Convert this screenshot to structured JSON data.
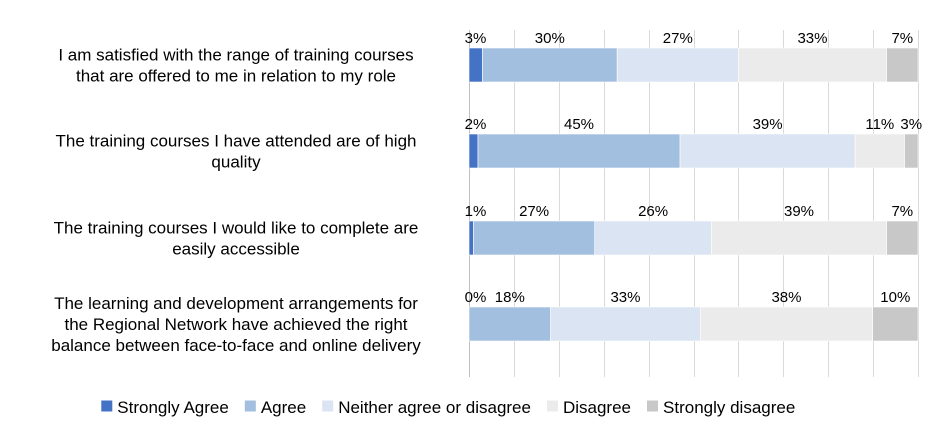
{
  "chart_data": {
    "type": "bar",
    "orientation": "horizontal",
    "stacked": "100%",
    "categories": [
      [
        "I am satisfied with the range of training courses",
        "that are offered to me in relation to my role"
      ],
      [
        "The training courses I have attended are of high",
        "quality"
      ],
      [
        "The training courses I would like to complete are",
        "easily accessible"
      ],
      [
        "The learning and development arrangements for",
        "the Regional Network have achieved the right",
        "balance between face-to-face and online delivery"
      ]
    ],
    "series": [
      {
        "name": "Strongly Agree",
        "color": "#4472C4",
        "values": [
          3,
          2,
          1,
          0
        ]
      },
      {
        "name": "Agree",
        "color": "#A3BFE0",
        "values": [
          30,
          45,
          27,
          18
        ]
      },
      {
        "name": "Neither agree or disagree",
        "color": "#DAE4F2",
        "values": [
          27,
          39,
          26,
          33
        ]
      },
      {
        "name": "Disagree",
        "color": "#EBEBEB",
        "values": [
          33,
          11,
          39,
          38
        ]
      },
      {
        "name": "Strongly disagree",
        "color": "#C8C8C8",
        "values": [
          7,
          3,
          7,
          10
        ]
      }
    ],
    "data_labels": [
      [
        "3%",
        "30%",
        "27%",
        "33%",
        "7%"
      ],
      [
        "2%",
        "45%",
        "39%",
        "11%",
        "3%"
      ],
      [
        "1%",
        "27%",
        "26%",
        "39%",
        "7%"
      ],
      [
        "0%",
        "18%",
        "33%",
        "38%",
        "10%"
      ]
    ],
    "xlim": [
      0,
      100
    ],
    "grid": true,
    "legend": "bottom"
  }
}
